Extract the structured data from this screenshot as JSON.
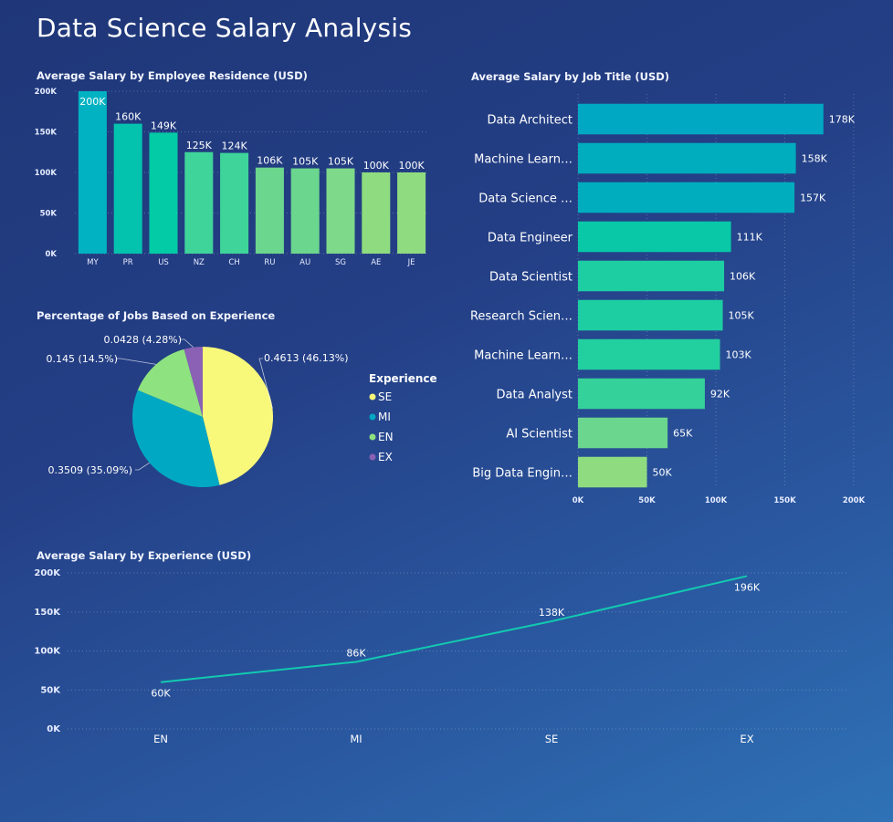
{
  "page": {
    "title": "Data Science Salary Analysis"
  },
  "colors": {
    "teal": "#00b2c2",
    "seafoam": "#1fd1a0",
    "mint": "#66d590",
    "lime": "#8fdc80",
    "se": "#f8f87a",
    "mi": "#00a8c4",
    "en": "#8ee27f",
    "ex": "#8a61b5",
    "line": "#13c9b0"
  },
  "chart_data": [
    {
      "id": "residence",
      "type": "bar",
      "title": "Average Salary by Employee Residence (USD)",
      "categories": [
        "MY",
        "PR",
        "US",
        "NZ",
        "CH",
        "RU",
        "AU",
        "SG",
        "AE",
        "JE"
      ],
      "values": [
        200000,
        160000,
        149000,
        125000,
        124000,
        106000,
        105000,
        105000,
        100000,
        100000
      ],
      "data_labels": [
        "200K",
        "160K",
        "149K",
        "125K",
        "124K",
        "106K",
        "105K",
        "105K",
        "100K",
        "100K"
      ],
      "bar_colors": [
        "#00b2c2",
        "#03c3ae",
        "#02cba6",
        "#3ed49a",
        "#3ed49a",
        "#6bd68d",
        "#6bd68d",
        "#7ed98a",
        "#8fdc80",
        "#8fdc80"
      ],
      "yticks": [
        "0K",
        "50K",
        "100K",
        "150K",
        "200K"
      ],
      "ylim": [
        0,
        200000
      ],
      "grid": true
    },
    {
      "id": "jobtitle",
      "type": "bar",
      "orientation": "horizontal",
      "title": "Average Salary by Job Title (USD)",
      "categories": [
        "Data Architect",
        "Machine Learn…",
        "Data Science …",
        "Data Engineer",
        "Data Scientist",
        "Research Scien…",
        "Machine Learn…",
        "Data Analyst",
        "AI Scientist",
        "Big Data Engin…"
      ],
      "values": [
        178000,
        158000,
        157000,
        111000,
        106000,
        105000,
        103000,
        92000,
        65000,
        50000
      ],
      "data_labels": [
        "178K",
        "158K",
        "157K",
        "111K",
        "106K",
        "105K",
        "103K",
        "92K",
        "65K",
        "50K"
      ],
      "bar_colors": [
        "#00a8c4",
        "#00adbe",
        "#00adbe",
        "#08c8a8",
        "#1dcea3",
        "#1dcea3",
        "#22cf9f",
        "#35d19a",
        "#6bd68d",
        "#8fdc80"
      ],
      "xticks": [
        "0K",
        "50K",
        "100K",
        "150K",
        "200K"
      ],
      "xlim": [
        0,
        200000
      ],
      "grid": true
    },
    {
      "id": "experience_pie",
      "type": "pie",
      "title": "Percentage of Jobs Based on Experience",
      "legend_title": "Experience",
      "labels": [
        "SE",
        "MI",
        "EN",
        "EX"
      ],
      "values": [
        0.4613,
        0.3509,
        0.145,
        0.0428
      ],
      "slice_labels": [
        "0.4613 (46.13%)",
        "0.3509 (35.09%)",
        "0.145 (14.5%)",
        "0.0428 (4.28%)"
      ],
      "slice_colors": [
        "#f8f87a",
        "#00a8c4",
        "#8ee27f",
        "#8a61b5"
      ],
      "legend_position": "right"
    },
    {
      "id": "experience_line",
      "type": "line",
      "title": "Average Salary by Experience (USD)",
      "categories": [
        "EN",
        "MI",
        "SE",
        "EX"
      ],
      "values": [
        60000,
        86000,
        138000,
        196000
      ],
      "data_labels": [
        "60K",
        "86K",
        "138K",
        "196K"
      ],
      "yticks": [
        "0K",
        "50K",
        "100K",
        "150K",
        "200K"
      ],
      "ylim": [
        0,
        200000
      ],
      "grid": true
    }
  ]
}
